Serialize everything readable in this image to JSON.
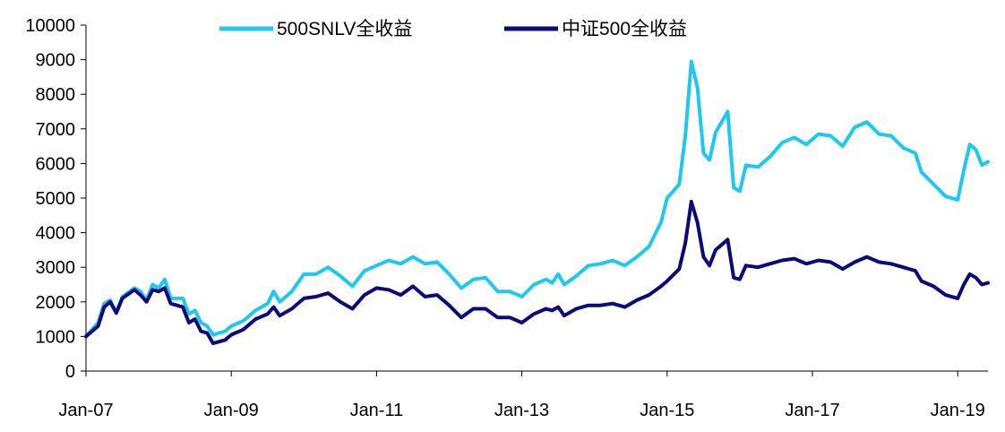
{
  "chart_data": {
    "type": "line",
    "title": "",
    "xlabel": "",
    "ylabel": "",
    "x_tick_labels": [
      "Jan-07",
      "Jan-09",
      "Jan-11",
      "Jan-13",
      "Jan-15",
      "Jan-17",
      "Jan-19"
    ],
    "x_ticks": [
      "2007-01",
      "2009-01",
      "2011-01",
      "2013-01",
      "2015-01",
      "2017-01",
      "2019-01"
    ],
    "xlim": [
      "2007-01",
      "2019-06"
    ],
    "y_ticks": [
      0,
      1000,
      2000,
      3000,
      4000,
      5000,
      6000,
      7000,
      8000,
      9000,
      10000
    ],
    "ylim": [
      0,
      10000
    ],
    "grid": false,
    "legend_position": "top-center",
    "series": [
      {
        "name": "500SNLV全收益",
        "color": "#1EC8F0",
        "points": [
          [
            "2007-01",
            1000
          ],
          [
            "2007-03",
            1400
          ],
          [
            "2007-04",
            1950
          ],
          [
            "2007-05",
            2050
          ],
          [
            "2007-06",
            1680
          ],
          [
            "2007-07",
            2150
          ],
          [
            "2007-09",
            2400
          ],
          [
            "2007-10",
            2300
          ],
          [
            "2007-11",
            2050
          ],
          [
            "2007-12",
            2500
          ],
          [
            "2008-01",
            2400
          ],
          [
            "2008-02",
            2650
          ],
          [
            "2008-03",
            2100
          ],
          [
            "2008-05",
            2100
          ],
          [
            "2008-06",
            1650
          ],
          [
            "2008-07",
            1750
          ],
          [
            "2008-08",
            1400
          ],
          [
            "2008-09",
            1300
          ],
          [
            "2008-10",
            1050
          ],
          [
            "2008-12",
            1150
          ],
          [
            "2009-01",
            1300
          ],
          [
            "2009-03",
            1450
          ],
          [
            "2009-05",
            1750
          ],
          [
            "2009-07",
            1950
          ],
          [
            "2009-08",
            2300
          ],
          [
            "2009-09",
            2000
          ],
          [
            "2009-11",
            2300
          ],
          [
            "2010-01",
            2800
          ],
          [
            "2010-03",
            2800
          ],
          [
            "2010-05",
            3000
          ],
          [
            "2010-07",
            2750
          ],
          [
            "2010-09",
            2450
          ],
          [
            "2010-11",
            2900
          ],
          [
            "2011-01",
            3050
          ],
          [
            "2011-03",
            3200
          ],
          [
            "2011-05",
            3100
          ],
          [
            "2011-07",
            3300
          ],
          [
            "2011-09",
            3100
          ],
          [
            "2011-11",
            3150
          ],
          [
            "2012-01",
            2800
          ],
          [
            "2012-03",
            2400
          ],
          [
            "2012-05",
            2650
          ],
          [
            "2012-07",
            2700
          ],
          [
            "2012-09",
            2300
          ],
          [
            "2012-11",
            2300
          ],
          [
            "2013-01",
            2150
          ],
          [
            "2013-03",
            2500
          ],
          [
            "2013-05",
            2650
          ],
          [
            "2013-06",
            2550
          ],
          [
            "2013-07",
            2800
          ],
          [
            "2013-08",
            2500
          ],
          [
            "2013-10",
            2750
          ],
          [
            "2013-12",
            3050
          ],
          [
            "2014-02",
            3100
          ],
          [
            "2014-04",
            3200
          ],
          [
            "2014-06",
            3050
          ],
          [
            "2014-08",
            3300
          ],
          [
            "2014-10",
            3600
          ],
          [
            "2014-12",
            4300
          ],
          [
            "2015-01",
            5000
          ],
          [
            "2015-03",
            5400
          ],
          [
            "2015-04",
            6800
          ],
          [
            "2015-05",
            8950
          ],
          [
            "2015-06",
            8200
          ],
          [
            "2015-07",
            6300
          ],
          [
            "2015-08",
            6100
          ],
          [
            "2015-09",
            6900
          ],
          [
            "2015-11",
            7500
          ],
          [
            "2015-12",
            5300
          ],
          [
            "2016-01",
            5200
          ],
          [
            "2016-02",
            5950
          ],
          [
            "2016-04",
            5900
          ],
          [
            "2016-06",
            6200
          ],
          [
            "2016-08",
            6600
          ],
          [
            "2016-10",
            6750
          ],
          [
            "2016-12",
            6550
          ],
          [
            "2017-02",
            6850
          ],
          [
            "2017-04",
            6800
          ],
          [
            "2017-06",
            6500
          ],
          [
            "2017-08",
            7050
          ],
          [
            "2017-10",
            7200
          ],
          [
            "2017-12",
            6850
          ],
          [
            "2018-02",
            6800
          ],
          [
            "2018-04",
            6450
          ],
          [
            "2018-06",
            6300
          ],
          [
            "2018-07",
            5750
          ],
          [
            "2018-09",
            5400
          ],
          [
            "2018-11",
            5050
          ],
          [
            "2019-01",
            4950
          ],
          [
            "2019-02",
            5800
          ],
          [
            "2019-03",
            6550
          ],
          [
            "2019-04",
            6400
          ],
          [
            "2019-05",
            5950
          ],
          [
            "2019-06",
            6050
          ]
        ]
      },
      {
        "name": "中证500全收益",
        "color": "#0A0A78",
        "points": [
          [
            "2007-01",
            1000
          ],
          [
            "2007-03",
            1300
          ],
          [
            "2007-04",
            1850
          ],
          [
            "2007-05",
            2000
          ],
          [
            "2007-06",
            1680
          ],
          [
            "2007-07",
            2100
          ],
          [
            "2007-09",
            2350
          ],
          [
            "2007-10",
            2200
          ],
          [
            "2007-11",
            2000
          ],
          [
            "2007-12",
            2350
          ],
          [
            "2008-01",
            2300
          ],
          [
            "2008-02",
            2400
          ],
          [
            "2008-03",
            1950
          ],
          [
            "2008-05",
            1850
          ],
          [
            "2008-06",
            1400
          ],
          [
            "2008-07",
            1500
          ],
          [
            "2008-08",
            1150
          ],
          [
            "2008-09",
            1100
          ],
          [
            "2008-10",
            800
          ],
          [
            "2008-12",
            900
          ],
          [
            "2009-01",
            1050
          ],
          [
            "2009-03",
            1200
          ],
          [
            "2009-05",
            1500
          ],
          [
            "2009-07",
            1650
          ],
          [
            "2009-08",
            1850
          ],
          [
            "2009-09",
            1600
          ],
          [
            "2009-11",
            1800
          ],
          [
            "2010-01",
            2100
          ],
          [
            "2010-03",
            2150
          ],
          [
            "2010-05",
            2250
          ],
          [
            "2010-07",
            2000
          ],
          [
            "2010-09",
            1800
          ],
          [
            "2010-11",
            2200
          ],
          [
            "2011-01",
            2400
          ],
          [
            "2011-03",
            2350
          ],
          [
            "2011-05",
            2200
          ],
          [
            "2011-07",
            2450
          ],
          [
            "2011-09",
            2150
          ],
          [
            "2011-11",
            2200
          ],
          [
            "2012-01",
            1900
          ],
          [
            "2012-03",
            1550
          ],
          [
            "2012-05",
            1800
          ],
          [
            "2012-07",
            1800
          ],
          [
            "2012-09",
            1550
          ],
          [
            "2012-11",
            1550
          ],
          [
            "2013-01",
            1400
          ],
          [
            "2013-03",
            1650
          ],
          [
            "2013-05",
            1800
          ],
          [
            "2013-06",
            1750
          ],
          [
            "2013-07",
            1850
          ],
          [
            "2013-08",
            1600
          ],
          [
            "2013-10",
            1800
          ],
          [
            "2013-12",
            1900
          ],
          [
            "2014-02",
            1900
          ],
          [
            "2014-04",
            1950
          ],
          [
            "2014-06",
            1850
          ],
          [
            "2014-08",
            2050
          ],
          [
            "2014-10",
            2200
          ],
          [
            "2014-12",
            2450
          ],
          [
            "2015-01",
            2600
          ],
          [
            "2015-03",
            2950
          ],
          [
            "2015-04",
            3700
          ],
          [
            "2015-05",
            4900
          ],
          [
            "2015-06",
            4300
          ],
          [
            "2015-07",
            3300
          ],
          [
            "2015-08",
            3050
          ],
          [
            "2015-09",
            3500
          ],
          [
            "2015-11",
            3800
          ],
          [
            "2015-12",
            2700
          ],
          [
            "2016-01",
            2650
          ],
          [
            "2016-02",
            3050
          ],
          [
            "2016-04",
            3000
          ],
          [
            "2016-06",
            3100
          ],
          [
            "2016-08",
            3200
          ],
          [
            "2016-10",
            3250
          ],
          [
            "2016-12",
            3100
          ],
          [
            "2017-02",
            3200
          ],
          [
            "2017-04",
            3150
          ],
          [
            "2017-06",
            2950
          ],
          [
            "2017-08",
            3150
          ],
          [
            "2017-10",
            3300
          ],
          [
            "2017-12",
            3150
          ],
          [
            "2018-02",
            3100
          ],
          [
            "2018-04",
            3000
          ],
          [
            "2018-06",
            2900
          ],
          [
            "2018-07",
            2600
          ],
          [
            "2018-09",
            2450
          ],
          [
            "2018-11",
            2200
          ],
          [
            "2019-01",
            2100
          ],
          [
            "2019-02",
            2500
          ],
          [
            "2019-03",
            2800
          ],
          [
            "2019-04",
            2700
          ],
          [
            "2019-05",
            2500
          ],
          [
            "2019-06",
            2550
          ]
        ]
      }
    ]
  }
}
